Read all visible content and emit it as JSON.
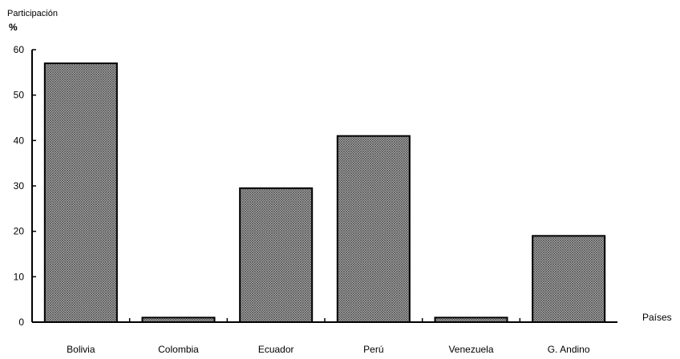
{
  "chart_data": {
    "type": "bar",
    "ylabel_line1": "Participación",
    "ylabel_line2": "%",
    "xlabel": "Países",
    "categories": [
      "Bolivia",
      "Colombia",
      "Ecuador",
      "Perú",
      "Venezuela",
      "G. Andino"
    ],
    "values": [
      57,
      1,
      29.5,
      41,
      1,
      19
    ],
    "ylim": [
      0,
      60
    ],
    "yticks": [
      "0",
      "10",
      "20",
      "30",
      "40",
      "50",
      "60"
    ],
    "grid": false,
    "bar_color": "#9a9a9a",
    "bar_pattern": "crosshatch"
  }
}
